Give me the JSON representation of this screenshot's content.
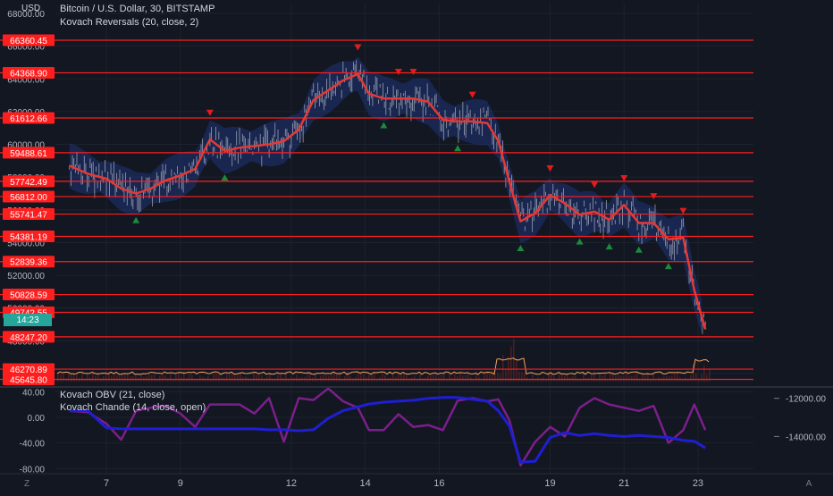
{
  "header": {
    "currency": "USD",
    "title": "Bitcoin / U.S. Dollar, 30, BITSTAMP",
    "indicator": "Kovach Reversals (20, close, 2)"
  },
  "lower_pane": {
    "indicator_1": "Kovach OBV (21, close)",
    "indicator_2": "Kovach Chande (14, close, open)"
  },
  "footer": {
    "left_icon_label": "Z",
    "right_icon_label": "A"
  },
  "colors": {
    "background": "#131722",
    "level_line": "#ff1e1e",
    "price_line": "#e53935",
    "band": "#1e3a8a",
    "candle": "#c7c9cf",
    "up_marker": "#1b8a3a",
    "down_marker": "#e31b1b",
    "obv": "#1f1fd1",
    "chande": "#7b1f8a",
    "volume": "#4a1e22",
    "volume_ma": "#f4a259",
    "countdown": "#26a69a"
  },
  "chart_data": [
    {
      "type": "line",
      "title": "Bitcoin / U.S. Dollar, 30, BITSTAMP",
      "x_tick_labels": [
        "7",
        "9",
        "12",
        "14",
        "16",
        "19",
        "21",
        "23"
      ],
      "x_ticks_day": [
        7,
        9,
        12,
        14,
        16,
        19,
        21,
        23
      ],
      "y_tick_labels": [
        "68000.00",
        "66000.00",
        "64000.00",
        "62000.00",
        "60000.00",
        "58000.00",
        "56000.00",
        "54000.00",
        "52000.00",
        "50000.00",
        "48000.00",
        "46000.00"
      ],
      "ylim": [
        45400,
        68600
      ],
      "price_levels": [
        "66360.45",
        "64368.90",
        "61612.66",
        "59488.61",
        "57742.49",
        "56812.00",
        "55741.47",
        "54381.19",
        "52839.36",
        "50828.59",
        "49742.55",
        "48247.20",
        "46270.89",
        "45645.80"
      ],
      "countdown": "14:23",
      "series": [
        {
          "name": "Kovach Reversals (20, close, 2)",
          "x": [
            "Nov 6",
            "Nov 6.5",
            "Nov 7",
            "Nov 7.4",
            "Nov 7.8",
            "Nov 8.2",
            "Nov 8.6",
            "Nov 9",
            "Nov 9.4",
            "Nov 9.8",
            "Nov 10.2",
            "Nov 10.6",
            "Nov 11",
            "Nov 11.4",
            "Nov 11.8",
            "Nov 12.2",
            "Nov 12.6",
            "Nov 13",
            "Nov 13.4",
            "Nov 13.8",
            "Nov 14.1",
            "Nov 14.5",
            "Nov 14.9",
            "Nov 15.3",
            "Nov 15.7",
            "Nov 16.1",
            "Nov 16.5",
            "Nov 16.9",
            "Nov 17.3",
            "Nov 17.6",
            "Nov 17.9",
            "Nov 18.2",
            "Nov 18.6",
            "Nov 19",
            "Nov 19.4",
            "Nov 19.8",
            "Nov 20.2",
            "Nov 20.6",
            "Nov 21",
            "Nov 21.4",
            "Nov 21.8",
            "Nov 22.2",
            "Nov 22.6",
            "Nov 22.9",
            "Nov 23.2"
          ],
          "values": [
            58700,
            58200,
            57900,
            57300,
            57000,
            57300,
            57800,
            58100,
            58500,
            60300,
            59600,
            59800,
            59900,
            60000,
            60200,
            60900,
            62700,
            63300,
            63900,
            64300,
            63100,
            62800,
            62800,
            62800,
            62600,
            61500,
            61400,
            61400,
            61300,
            60200,
            57700,
            55300,
            55800,
            56900,
            56400,
            55700,
            55900,
            55400,
            56300,
            55200,
            55200,
            54200,
            54300,
            51100,
            48700
          ]
        }
      ]
    },
    {
      "type": "line",
      "title": "",
      "y_tick_labels": [
        "40.00",
        "0.00",
        "-40.00",
        "-80.00"
      ],
      "ylim": [
        -88,
        46
      ],
      "right_axis_labels": [
        "-12000.00",
        "-14000.00"
      ],
      "right_ylim": [
        -15950,
        -11450
      ],
      "series": [
        {
          "name": "Kovach OBV (21, close)",
          "x": [
            "Nov 6",
            "Nov 6.5",
            "Nov 7",
            "Nov 7.4",
            "Nov 7.8",
            "Nov 8.2",
            "Nov 8.6",
            "Nov 9",
            "Nov 9.4",
            "Nov 9.8",
            "Nov 10.2",
            "Nov 10.6",
            "Nov 11",
            "Nov 11.4",
            "Nov 11.8",
            "Nov 12.2",
            "Nov 12.6",
            "Nov 13",
            "Nov 13.4",
            "Nov 13.8",
            "Nov 14.1",
            "Nov 14.5",
            "Nov 14.9",
            "Nov 15.3",
            "Nov 15.7",
            "Nov 16.1",
            "Nov 16.5",
            "Nov 16.9",
            "Nov 17.3",
            "Nov 17.6",
            "Nov 17.9",
            "Nov 18.2",
            "Nov 18.6",
            "Nov 19",
            "Nov 19.4",
            "Nov 19.8",
            "Nov 20.2",
            "Nov 20.6",
            "Nov 21",
            "Nov 21.4",
            "Nov 21.8",
            "Nov 22.2",
            "Nov 22.6",
            "Nov 22.9",
            "Nov 23.2"
          ],
          "values": [
            -12650,
            -12650,
            -13550,
            -13600,
            -13600,
            -13600,
            -13600,
            -13600,
            -13600,
            -13600,
            -13600,
            -13600,
            -13600,
            -13650,
            -13650,
            -13700,
            -13650,
            -13050,
            -12650,
            -12450,
            -12300,
            -12200,
            -12150,
            -12100,
            -12000,
            -11950,
            -11950,
            -12050,
            -12150,
            -12650,
            -13450,
            -15350,
            -15300,
            -14050,
            -13800,
            -13950,
            -13850,
            -13950,
            -14000,
            -13950,
            -14000,
            -14050,
            -14200,
            -14250,
            -14600
          ]
        },
        {
          "name": "Kovach Chande (14, close, open)",
          "x": [
            "Nov 6",
            "Nov 6.5",
            "Nov 7",
            "Nov 7.4",
            "Nov 7.8",
            "Nov 8.2",
            "Nov 8.6",
            "Nov 9",
            "Nov 9.4",
            "Nov 9.8",
            "Nov 10.2",
            "Nov 10.6",
            "Nov 11",
            "Nov 11.4",
            "Nov 11.8",
            "Nov 12.2",
            "Nov 12.6",
            "Nov 13",
            "Nov 13.4",
            "Nov 13.8",
            "Nov 14.1",
            "Nov 14.5",
            "Nov 14.9",
            "Nov 15.3",
            "Nov 15.7",
            "Nov 16.1",
            "Nov 16.5",
            "Nov 16.9",
            "Nov 17.3",
            "Nov 17.6",
            "Nov 17.9",
            "Nov 18.2",
            "Nov 18.6",
            "Nov 19",
            "Nov 19.4",
            "Nov 19.8",
            "Nov 20.2",
            "Nov 20.6",
            "Nov 21",
            "Nov 21.4",
            "Nov 21.8",
            "Nov 22.2",
            "Nov 22.6",
            "Nov 22.9",
            "Nov 23.2"
          ],
          "values": [
            10,
            8,
            -10,
            -35,
            10,
            15,
            18,
            6,
            -15,
            20,
            20,
            20,
            6,
            30,
            -38,
            30,
            27,
            45,
            25,
            15,
            -20,
            -20,
            5,
            -15,
            -12,
            -20,
            26,
            30,
            25,
            28,
            -5,
            -75,
            -38,
            -15,
            -30,
            15,
            30,
            20,
            15,
            10,
            18,
            -40,
            -20,
            20,
            -20
          ]
        }
      ]
    }
  ]
}
